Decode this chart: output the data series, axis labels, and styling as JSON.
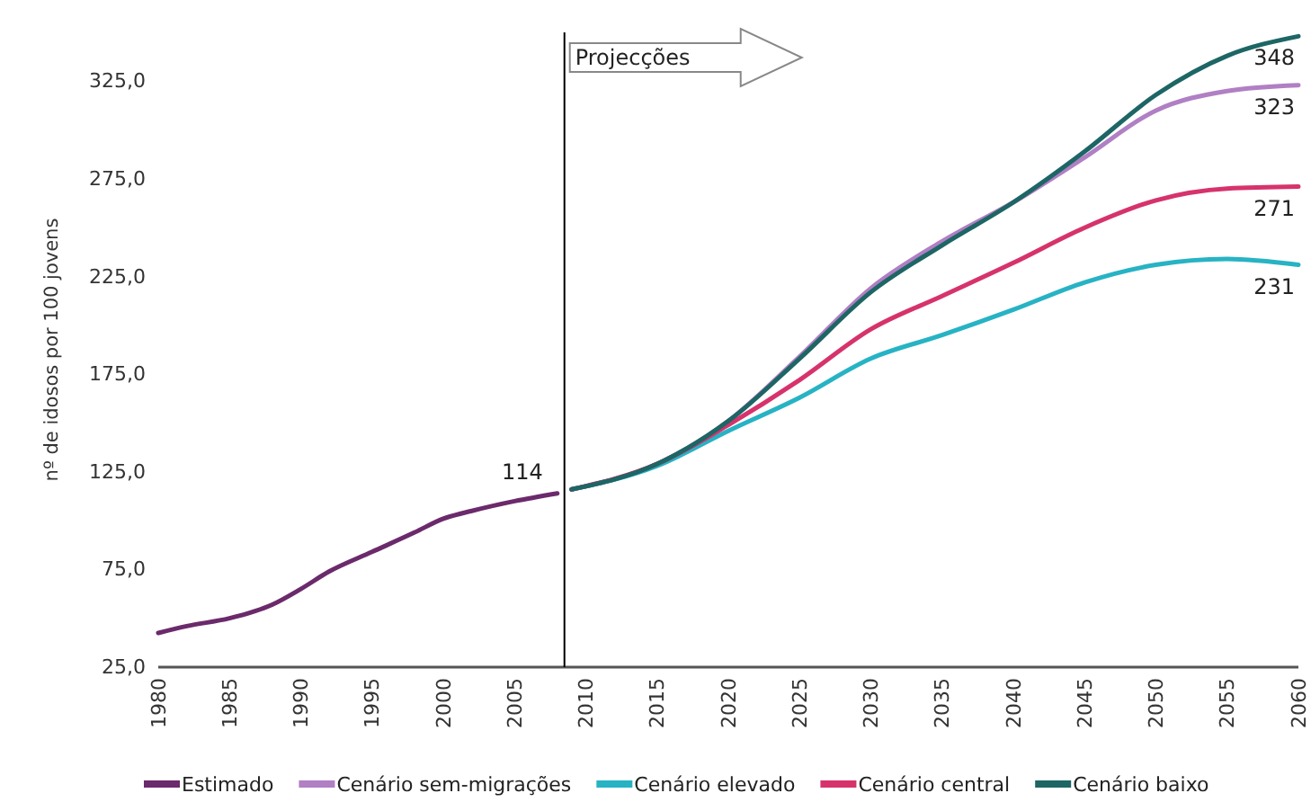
{
  "chart_data": {
    "type": "line",
    "ylabel": "nº de idosos por 100 jovens",
    "xlim": [
      1980,
      2060
    ],
    "xticks": [
      1980,
      1985,
      1990,
      1995,
      2000,
      2005,
      2010,
      2015,
      2020,
      2025,
      2030,
      2035,
      2040,
      2045,
      2050,
      2055,
      2060
    ],
    "ylim": [
      25,
      350
    ],
    "yticks": [
      {
        "value": 25,
        "label": "25,0"
      },
      {
        "value": 75,
        "label": "75,0"
      },
      {
        "value": 125,
        "label": "125,0"
      },
      {
        "value": 175,
        "label": "175,0"
      },
      {
        "value": 225,
        "label": "225,0"
      },
      {
        "value": 275,
        "label": "275,0"
      },
      {
        "value": 325,
        "label": "325,0"
      }
    ],
    "grid": false,
    "legend": "bottom",
    "marker": "none",
    "line_style": "solid",
    "ref_lines": [
      {
        "axis": "x",
        "value": 2008.5,
        "label": "Projecções",
        "color": "#000000"
      }
    ],
    "series": [
      {
        "name": "Estimado",
        "color": "#6b2a6b",
        "x": [
          1980,
          1982,
          1985,
          1988,
          1990,
          1992,
          1995,
          1998,
          2000,
          2002,
          2005,
          2008
        ],
        "values": [
          42.5,
          46,
          50,
          57,
          65,
          74,
          84,
          94,
          101,
          105,
          110,
          114
        ],
        "value_labels": [
          null,
          null,
          null,
          null,
          null,
          null,
          null,
          null,
          null,
          null,
          null,
          "114"
        ]
      },
      {
        "name": "Cenário sem-migrações",
        "color": "#b07fc4",
        "x": [
          2009,
          2015,
          2020,
          2025,
          2030,
          2035,
          2040,
          2045,
          2050,
          2055,
          2060
        ],
        "values": [
          116,
          129,
          151,
          184,
          219,
          243,
          263,
          286,
          310,
          320,
          323
        ],
        "value_labels": [
          null,
          null,
          null,
          null,
          null,
          null,
          null,
          null,
          null,
          null,
          "323"
        ]
      },
      {
        "name": "Cenário elevado",
        "color": "#27b3c4",
        "x": [
          2009,
          2015,
          2020,
          2025,
          2030,
          2035,
          2040,
          2045,
          2050,
          2055,
          2060
        ],
        "values": [
          116,
          128,
          146,
          163,
          183,
          195,
          208,
          222,
          231,
          234,
          231
        ],
        "value_labels": [
          null,
          null,
          null,
          null,
          null,
          null,
          null,
          null,
          null,
          null,
          "231"
        ]
      },
      {
        "name": "Cenário central",
        "color": "#d6336c",
        "x": [
          2009,
          2015,
          2020,
          2025,
          2030,
          2035,
          2040,
          2045,
          2050,
          2055,
          2060
        ],
        "values": [
          116,
          129,
          149,
          172,
          198,
          215,
          232,
          250,
          264,
          270,
          271
        ],
        "value_labels": [
          null,
          null,
          null,
          null,
          null,
          null,
          null,
          null,
          null,
          null,
          "271"
        ]
      },
      {
        "name": "Cenário baixo",
        "color": "#1d6665",
        "x": [
          2009,
          2015,
          2020,
          2025,
          2030,
          2035,
          2040,
          2045,
          2050,
          2055,
          2060
        ],
        "values": [
          116,
          129,
          151,
          183,
          217,
          241,
          263,
          289,
          318,
          338,
          348
        ],
        "value_labels": [
          null,
          null,
          null,
          null,
          null,
          null,
          null,
          null,
          null,
          null,
          "348"
        ]
      }
    ]
  }
}
